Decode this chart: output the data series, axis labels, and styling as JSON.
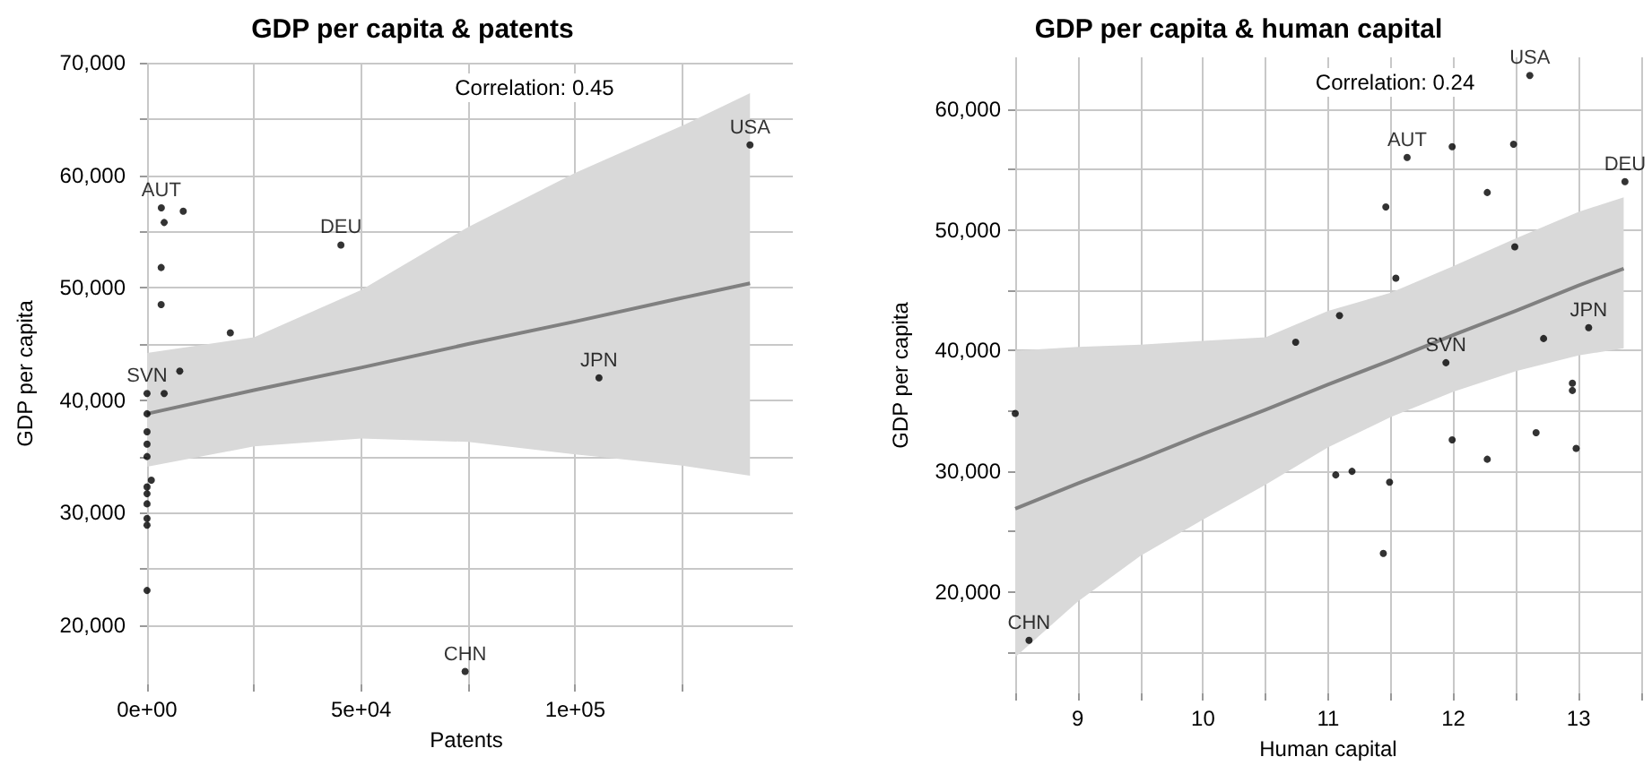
{
  "chart_data": [
    {
      "type": "scatter",
      "title": "GDP per capita & patents",
      "xlabel": "Patents",
      "ylabel": "GDP per capita",
      "xlim": [
        -1667,
        150833
      ],
      "ylim": [
        14750,
        70000
      ],
      "xticks": [
        {
          "value": 0,
          "label": "0e+00"
        },
        {
          "value": 25000,
          "label": null
        },
        {
          "value": 50000,
          "label": "5e+04"
        },
        {
          "value": 75000,
          "label": null
        },
        {
          "value": 100000,
          "label": "1e+05"
        },
        {
          "value": 125000,
          "label": null
        }
      ],
      "yticks": [
        {
          "value": 20000,
          "label": "20,000"
        },
        {
          "value": 25000,
          "label": null
        },
        {
          "value": 30000,
          "label": "30,000"
        },
        {
          "value": 35000,
          "label": null
        },
        {
          "value": 40000,
          "label": "40,000"
        },
        {
          "value": 45000,
          "label": null
        },
        {
          "value": 50000,
          "label": "50,000"
        },
        {
          "value": 55000,
          "label": null
        },
        {
          "value": 60000,
          "label": "60,000"
        },
        {
          "value": 65000,
          "label": null
        },
        {
          "value": 70000,
          "label": "70,000"
        }
      ],
      "grid": true,
      "series": [
        {
          "color": "#000000",
          "marker": "circle",
          "x": [
            140833,
            3333,
            4000,
            8450,
            3300,
            3300,
            19450,
            45280,
            7640,
            105560,
            0,
            4000,
            0,
            0,
            0,
            0,
            1000,
            0,
            0,
            0,
            0,
            0,
            0,
            74300
          ],
          "values": [
            62700,
            57100,
            55800,
            56800,
            51800,
            48500,
            46000,
            53800,
            42600,
            42000,
            40600,
            40600,
            38800,
            37200,
            36100,
            35000,
            32900,
            32300,
            31700,
            30800,
            29500,
            28900,
            23100,
            15900
          ]
        },
        {
          "type": "line",
          "color": "#808080",
          "marker": "none",
          "line_style": "solid",
          "x": [
            0,
            25000,
            50000,
            75000,
            100000,
            125000,
            140833
          ],
          "values": [
            38800,
            40900,
            42900,
            45000,
            47000,
            49100,
            50400
          ],
          "lower": [
            34100,
            35900,
            36600,
            36300,
            35200,
            34200,
            33300
          ],
          "upper": [
            44200,
            45600,
            49800,
            55400,
            60200,
            64400,
            67300
          ]
        }
      ],
      "annotations": [
        "Correlation: 0.45",
        {
          "text": "USA",
          "x": 140833,
          "y": 62700
        },
        {
          "text": "AUT",
          "x": 3333,
          "y": 57100
        },
        {
          "text": "DEU",
          "x": 45280,
          "y": 53800
        },
        {
          "text": "JPN",
          "x": 105560,
          "y": 42000
        },
        {
          "text": "SVN",
          "x": 0,
          "y": 40600
        },
        {
          "text": "CHN",
          "x": 74300,
          "y": 15900
        }
      ]
    },
    {
      "type": "scatter",
      "title": "GDP per capita & human capital",
      "xlabel": "Human capital",
      "ylabel": "GDP per capita",
      "xlim": [
        8.5,
        13.5
      ],
      "ylim": [
        11600,
        64300
      ],
      "xticks": [
        {
          "value": 8.5,
          "label": null
        },
        9,
        {
          "value": 9.5,
          "label": null
        },
        10,
        {
          "value": 10.5,
          "label": null
        },
        11,
        {
          "value": 11.5,
          "label": null
        },
        12,
        {
          "value": 12.5,
          "label": null
        },
        13,
        {
          "value": 13.5,
          "label": null
        }
      ],
      "yticks": [
        {
          "value": 15000,
          "label": null
        },
        {
          "value": 20000,
          "label": "20,000"
        },
        {
          "value": 25000,
          "label": null
        },
        {
          "value": 30000,
          "label": "30,000"
        },
        {
          "value": 35000,
          "label": null
        },
        {
          "value": 40000,
          "label": "40,000"
        },
        {
          "value": 45000,
          "label": null
        },
        {
          "value": 50000,
          "label": "50,000"
        },
        {
          "value": 55000,
          "label": null
        },
        {
          "value": 60000,
          "label": "60,000"
        }
      ],
      "grid": true,
      "series": [
        {
          "color": "#000000",
          "marker": "circle",
          "x": [
            12.61,
            11.63,
            11.99,
            12.48,
            12.27,
            13.37,
            11.46,
            12.49,
            11.54,
            11.09,
            10.74,
            12.72,
            13.08,
            11.94,
            12.95,
            12.95,
            8.5,
            11.06,
            11.19,
            11.49,
            11.44,
            11.99,
            12.27,
            12.66,
            12.98,
            8.61
          ],
          "values": [
            62800,
            56000,
            56900,
            57100,
            53100,
            54000,
            51900,
            48600,
            46000,
            42900,
            40700,
            41000,
            41900,
            39000,
            37300,
            36700,
            34800,
            29700,
            30000,
            29100,
            23200,
            32600,
            31000,
            33200,
            31900,
            16000
          ]
        },
        {
          "type": "line",
          "color": "#808080",
          "marker": "none",
          "line_style": "solid",
          "x": [
            8.5,
            9,
            9.5,
            10,
            10.5,
            11,
            11.5,
            12,
            12.5,
            13,
            13.36
          ],
          "values": [
            26900,
            29000,
            31000,
            33100,
            35100,
            37200,
            39200,
            41300,
            43300,
            45400,
            46800
          ],
          "lower": [
            14600,
            19200,
            23000,
            26000,
            28900,
            32000,
            34500,
            36600,
            38300,
            39600,
            40200
          ],
          "upper": [
            40000,
            40300,
            40500,
            40800,
            41100,
            43300,
            44800,
            47000,
            49300,
            51500,
            52700
          ]
        }
      ],
      "annotations": [
        "Correlation: 0.24",
        {
          "text": "USA",
          "x": 12.61,
          "y": 62800
        },
        {
          "text": "AUT",
          "x": 11.63,
          "y": 56000
        },
        {
          "text": "DEU",
          "x": 13.37,
          "y": 54000
        },
        {
          "text": "JPN",
          "x": 13.08,
          "y": 41900
        },
        {
          "text": "SVN",
          "x": 11.94,
          "y": 39000
        },
        {
          "text": "CHN",
          "x": 8.61,
          "y": 16000
        }
      ]
    }
  ]
}
